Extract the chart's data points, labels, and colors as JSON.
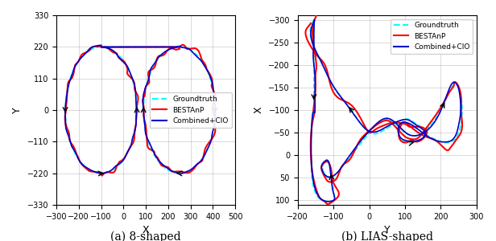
{
  "fig_width": 6.16,
  "fig_height": 3.0,
  "dpi": 100,
  "subplot_a": {
    "title": "(a) 8-shaped",
    "xlabel": "X",
    "ylabel": "Y",
    "xlim": [
      -300,
      500
    ],
    "ylim": [
      -330,
      330
    ],
    "xticks": [
      -300,
      -200,
      -100,
      0,
      100,
      200,
      300,
      400,
      500
    ],
    "yticks": [
      -330,
      -220,
      -110,
      0,
      110,
      220,
      330
    ],
    "legend_labels": [
      "Groundtruth",
      "BESTAnP",
      "Combined+CIO"
    ],
    "legend_colors": [
      "cyan",
      "red",
      "blue"
    ],
    "legend_styles": [
      "--",
      "-",
      "-"
    ]
  },
  "subplot_b": {
    "title": "(b) LIAS-shaped",
    "xlabel": "Y",
    "ylabel": "X",
    "xlim": [
      -200,
      300
    ],
    "ylim": [
      110,
      -310
    ],
    "xticks": [
      -200,
      -100,
      0,
      100,
      200,
      300
    ],
    "yticks": [
      -300,
      -250,
      -200,
      -150,
      -100,
      -50,
      0,
      50,
      100
    ],
    "legend_labels": [
      "Groundtruth",
      "BESTAnP",
      "Combined+CIO"
    ],
    "legend_colors": [
      "cyan",
      "red",
      "blue"
    ],
    "legend_styles": [
      "--",
      "-",
      "-"
    ]
  },
  "colors": {
    "groundtruth": "#00FFFF",
    "bestanp": "#FF0000",
    "combined": "#0000CC"
  }
}
